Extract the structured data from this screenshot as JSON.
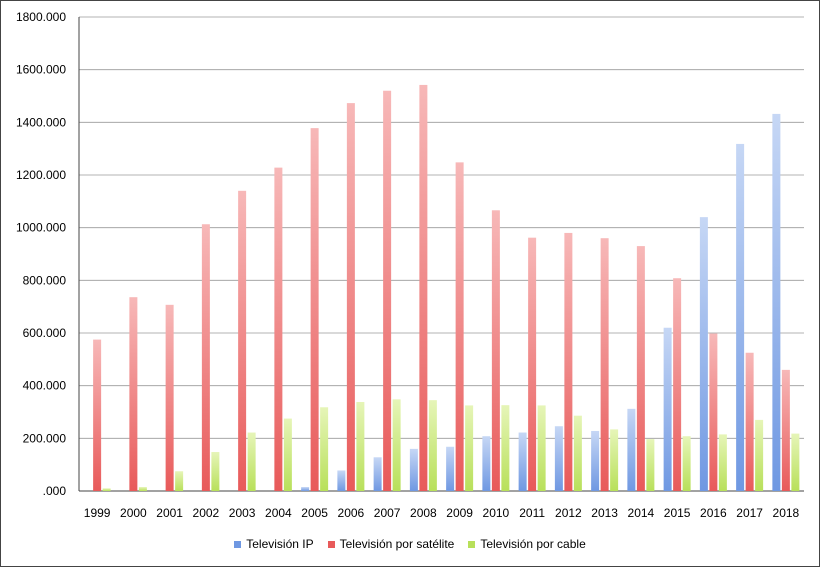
{
  "chart_data": {
    "type": "bar",
    "categories": [
      "1999",
      "2000",
      "2001",
      "2002",
      "2003",
      "2004",
      "2005",
      "2006",
      "2007",
      "2008",
      "2009",
      "2010",
      "2011",
      "2012",
      "2013",
      "2014",
      "2015",
      "2016",
      "2017",
      "2018"
    ],
    "series": [
      {
        "name": "Televisión IP",
        "color": "#6f98e2",
        "values": [
          0,
          0,
          0,
          0,
          0,
          0,
          15000,
          78000,
          128000,
          160000,
          168000,
          208000,
          222000,
          246000,
          228000,
          312000,
          620000,
          1040000,
          1318000,
          1432000
        ]
      },
      {
        "name": "Televisión por satélite",
        "color": "#e85a5a",
        "values": [
          575000,
          736000,
          707000,
          1013000,
          1140000,
          1228000,
          1378000,
          1473000,
          1520000,
          1542000,
          1248000,
          1066000,
          962000,
          980000,
          960000,
          930000,
          808000,
          598000,
          525000,
          460000
        ]
      },
      {
        "name": "Televisión por cable",
        "color": "#b8e05a",
        "values": [
          10000,
          15000,
          75000,
          148000,
          222000,
          275000,
          318000,
          338000,
          348000,
          345000,
          325000,
          326000,
          325000,
          286000,
          234000,
          197000,
          208000,
          215000,
          270000,
          218000
        ]
      }
    ],
    "ylim": [
      0,
      1800000
    ],
    "yticks": [
      0,
      200000,
      400000,
      600000,
      800000,
      1000000,
      1200000,
      1400000,
      1600000,
      1800000
    ],
    "ytick_labels": [
      ".000",
      "200.000",
      "400.000",
      "600.000",
      "800.000",
      "1000.000",
      "1200.000",
      "1400.000",
      "1600.000",
      "1800.000"
    ],
    "grid": true,
    "legend_position": "bottom"
  }
}
